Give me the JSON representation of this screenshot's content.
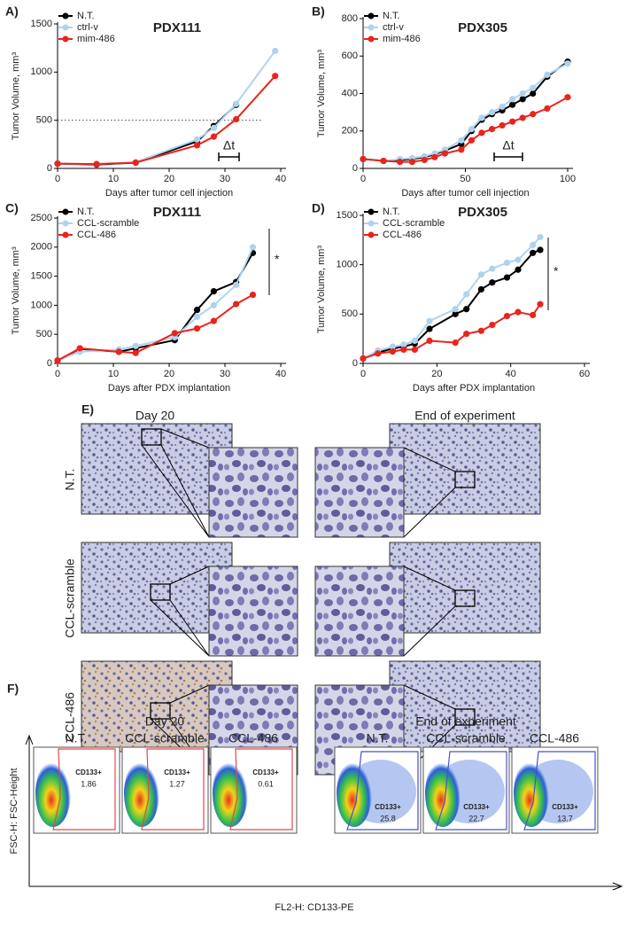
{
  "chart_data": [
    {
      "type": "line",
      "panel": "A)",
      "title": "PDX111",
      "x_label": "Days after tumor cell injection",
      "y_label": "Tumor Volume, mm³",
      "x": [
        0,
        7,
        14,
        25,
        28,
        32,
        39
      ],
      "xlim": [
        0,
        40
      ],
      "xticks": [
        0,
        10,
        20,
        30,
        40
      ],
      "ylim": [
        0,
        1500
      ],
      "yticks": [
        0,
        500,
        1000,
        1500
      ],
      "hline": 500,
      "annotations": [
        "Δt"
      ],
      "series": [
        {
          "name": "N.T.",
          "color": "#000000",
          "values": [
            50,
            40,
            60,
            280,
            440,
            660,
            null
          ]
        },
        {
          "name": "ctrl-v",
          "color": "#aed3f0",
          "values": [
            50,
            45,
            65,
            300,
            420,
            670,
            1220
          ]
        },
        {
          "name": "mim-486",
          "color": "#e8241c",
          "values": [
            50,
            45,
            60,
            240,
            330,
            510,
            960
          ]
        }
      ]
    },
    {
      "type": "line",
      "panel": "B)",
      "title": "PDX305",
      "x_label": "Days after tumor cell injection",
      "y_label": "Tumor Volume, mm³",
      "x": [
        0,
        10,
        18,
        24,
        30,
        35,
        40,
        48,
        53,
        58,
        63,
        68,
        73,
        78,
        83,
        90,
        100
      ],
      "xlim": [
        0,
        100
      ],
      "xticks": [
        0,
        50,
        100
      ],
      "ylim": [
        0,
        800
      ],
      "yticks": [
        0,
        200,
        400,
        600,
        800
      ],
      "annotations": [
        "Δt"
      ],
      "series": [
        {
          "name": "N.T.",
          "color": "#000000",
          "values": [
            50,
            40,
            45,
            50,
            60,
            75,
            95,
            130,
            200,
            260,
            290,
            310,
            340,
            370,
            400,
            490,
            570
          ]
        },
        {
          "name": "ctrl-v",
          "color": "#aed3f0",
          "values": [
            50,
            40,
            50,
            55,
            65,
            80,
            100,
            150,
            210,
            270,
            300,
            330,
            370,
            400,
            430,
            500,
            560
          ]
        },
        {
          "name": "mim-486",
          "color": "#e8241c",
          "values": [
            50,
            40,
            35,
            35,
            45,
            60,
            80,
            100,
            150,
            190,
            210,
            230,
            250,
            270,
            290,
            320,
            380
          ]
        }
      ]
    },
    {
      "type": "line",
      "panel": "C)",
      "title": "PDX111",
      "x_label": "Days after PDX implantation",
      "y_label": "Tumor Volume, mm³",
      "x": [
        0,
        4,
        11,
        14,
        21,
        25,
        28,
        32,
        35
      ],
      "xlim": [
        0,
        40
      ],
      "xticks": [
        0,
        10,
        20,
        30,
        40
      ],
      "ylim": [
        0,
        2500
      ],
      "yticks": [
        0,
        500,
        1000,
        1500,
        2000,
        2500
      ],
      "annotations": [
        "*"
      ],
      "series": [
        {
          "name": "N.T.",
          "color": "#000000",
          "values": [
            50,
            250,
            200,
            260,
            400,
            920,
            1240,
            1400,
            1900
          ]
        },
        {
          "name": "CCL-scramble",
          "color": "#aed3f0",
          "values": [
            50,
            200,
            240,
            300,
            450,
            800,
            1000,
            1350,
            2000
          ]
        },
        {
          "name": "CCL-486",
          "color": "#e8241c",
          "values": [
            50,
            260,
            200,
            180,
            520,
            600,
            730,
            1020,
            1180
          ]
        }
      ]
    },
    {
      "type": "line",
      "panel": "D)",
      "title": "PDX305",
      "x_label": "Days after PDX implantation",
      "y_label": "Tumor Volume, mm³",
      "x": [
        0,
        4,
        8,
        11,
        14,
        18,
        25,
        28,
        32,
        35,
        39,
        42,
        46,
        48
      ],
      "xlim": [
        0,
        60
      ],
      "xticks": [
        0,
        20,
        40,
        60
      ],
      "ylim": [
        0,
        1500
      ],
      "yticks": [
        0,
        500,
        1000,
        1500
      ],
      "annotations": [
        "*"
      ],
      "series": [
        {
          "name": "N.T.",
          "color": "#000000",
          "values": [
            50,
            110,
            150,
            170,
            200,
            350,
            500,
            550,
            750,
            820,
            870,
            950,
            1120,
            1150
          ]
        },
        {
          "name": "CCL-scramble",
          "color": "#aed3f0",
          "values": [
            50,
            130,
            170,
            190,
            230,
            430,
            550,
            700,
            900,
            960,
            1020,
            1050,
            1200,
            1280
          ]
        },
        {
          "name": "CCL-486",
          "color": "#e8241c",
          "values": [
            50,
            100,
            120,
            140,
            140,
            230,
            210,
            300,
            330,
            390,
            480,
            520,
            490,
            600
          ]
        }
      ]
    }
  ],
  "panel_e": {
    "label": "E)",
    "columns": [
      "Day 20",
      "End of experiment"
    ],
    "rows": [
      "N.T.",
      "CCL-scramble",
      "CCL-486"
    ]
  },
  "panel_f": {
    "label": "F)",
    "y_axis": "FSC-H: FSC-Height",
    "x_axis": "FL2-H: CD133-PE",
    "groups": [
      {
        "title": "Day 20",
        "plots": [
          {
            "name": "N.T.",
            "gate": "CD133+",
            "percent": 1.86
          },
          {
            "name": "CCL-scramble",
            "gate": "CD133+",
            "percent": 1.27
          },
          {
            "name": "CCL-486",
            "gate": "CD133+",
            "percent": 0.61
          }
        ]
      },
      {
        "title": "End of experiment",
        "plots": [
          {
            "name": "N.T.",
            "gate": "CD133+",
            "percent": 25.8
          },
          {
            "name": "CCL-scramble",
            "gate": "CD133+",
            "percent": 22.7
          },
          {
            "name": "CCL-486",
            "gate": "CD133+",
            "percent": 13.7
          }
        ]
      }
    ]
  }
}
